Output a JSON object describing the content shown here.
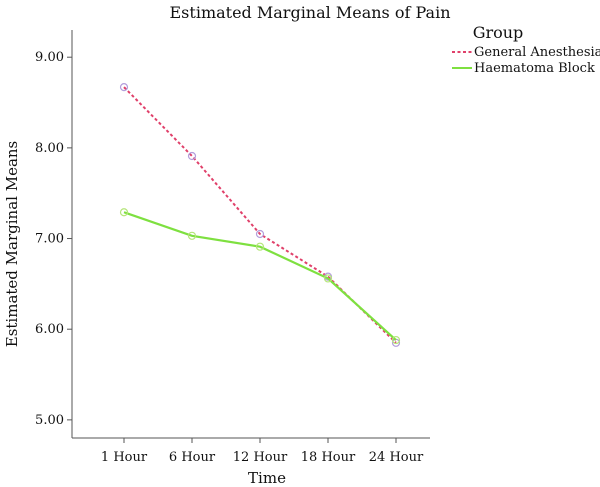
{
  "chart_data": {
    "type": "line",
    "title": "Estimated Marginal Means of Pain",
    "xlabel": "Time",
    "ylabel": "Estimated Marginal Means",
    "categories": [
      "1 Hour",
      "6 Hour",
      "12 Hour",
      "18 Hour",
      "24 Hour"
    ],
    "ylim": [
      4.8,
      9.3
    ],
    "yticks": [
      "5.00",
      "6.00",
      "7.00",
      "8.00",
      "9.00"
    ],
    "grid": false,
    "legend": {
      "title": "Group",
      "placement": "top-right"
    },
    "series": [
      {
        "name": "General Anesthesia",
        "values": [
          8.67,
          7.91,
          7.05,
          6.58,
          5.85
        ],
        "color": "#e0406a",
        "marker_color": "#b39ddb",
        "dash": true
      },
      {
        "name": "Haematoma Block",
        "values": [
          7.29,
          7.03,
          6.91,
          6.56,
          5.88
        ],
        "color": "#7ee040",
        "marker_color": "#b5e57a",
        "dash": false
      }
    ]
  }
}
